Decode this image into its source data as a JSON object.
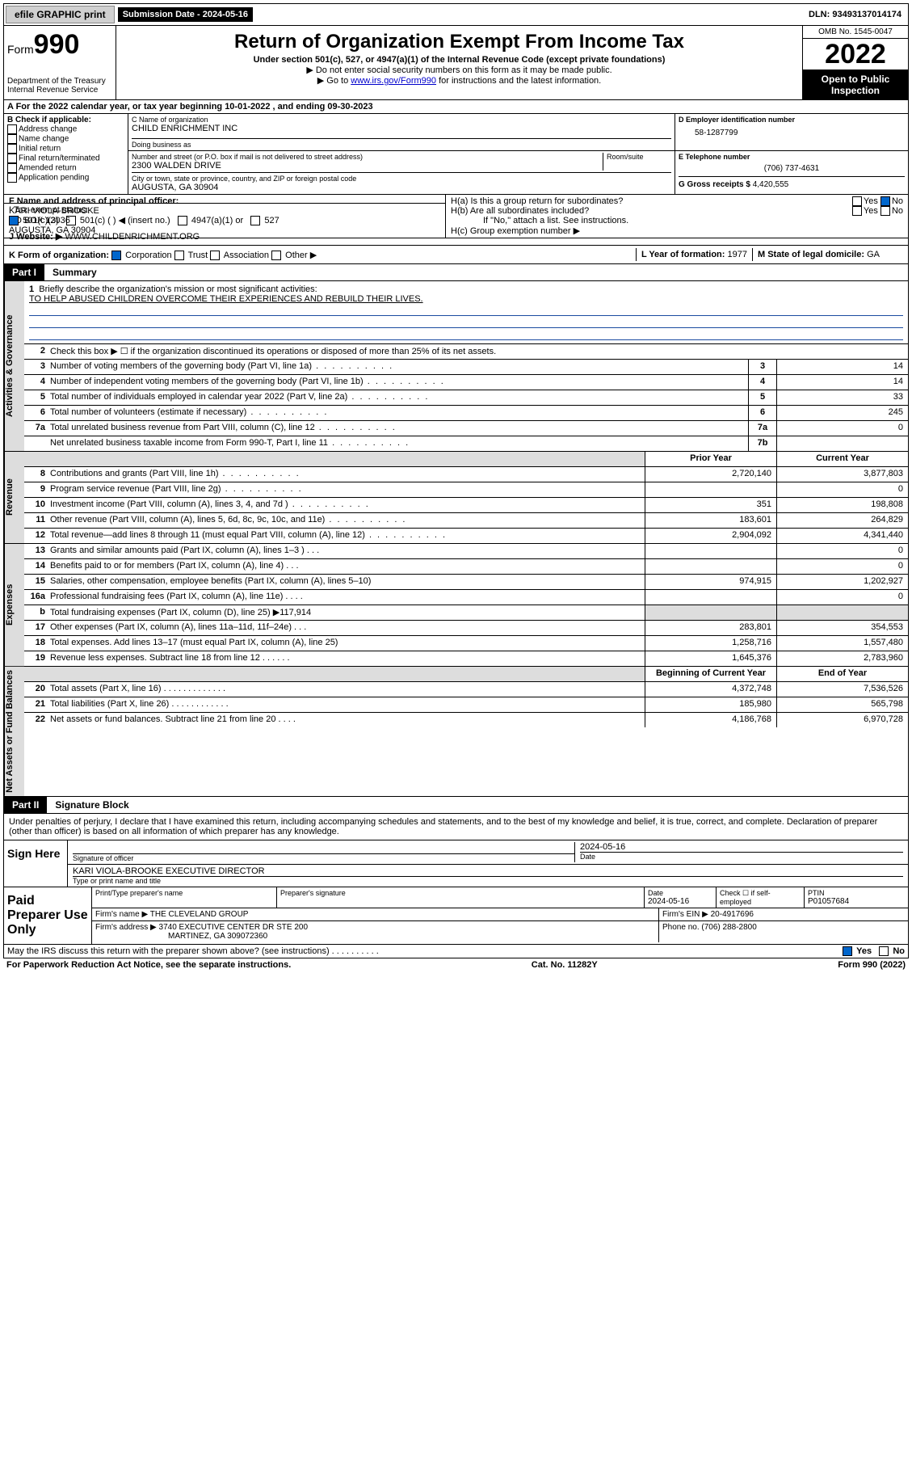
{
  "topbar": {
    "efile_label": "efile GRAPHIC print",
    "sub_date_label": "Submission Date - 2024-05-16",
    "dln": "DLN: 93493137014174"
  },
  "header": {
    "form_label": "Form",
    "form_number": "990",
    "dept": "Department of the Treasury",
    "irs": "Internal Revenue Service",
    "title": "Return of Organization Exempt From Income Tax",
    "subtitle": "Under section 501(c), 527, or 4947(a)(1) of the Internal Revenue Code (except private foundations)",
    "note1": "▶ Do not enter social security numbers on this form as it may be made public.",
    "note2_prefix": "▶ Go to ",
    "note2_link": "www.irs.gov/Form990",
    "note2_suffix": " for instructions and the latest information.",
    "omb": "OMB No. 1545-0047",
    "year": "2022",
    "open_public": "Open to Public Inspection"
  },
  "row_a": "A For the 2022 calendar year, or tax year beginning 10-01-2022   , and ending 09-30-2023",
  "col_b": {
    "label": "B Check if applicable:",
    "items": [
      "Address change",
      "Name change",
      "Initial return",
      "Final return/terminated",
      "Amended return",
      "Application pending"
    ]
  },
  "block_c": {
    "name_label": "C Name of organization",
    "name": "CHILD ENRICHMENT INC",
    "dba_label": "Doing business as",
    "dba": "",
    "street_label": "Number and street (or P.O. box if mail is not delivered to street address)",
    "room_label": "Room/suite",
    "street": "2300 WALDEN DRIVE",
    "city_label": "City or town, state or province, country, and ZIP or foreign postal code",
    "city": "AUGUSTA, GA  30904"
  },
  "block_d": {
    "label": "D Employer identification number",
    "value": "58-1287799"
  },
  "block_e": {
    "label": "E Telephone number",
    "value": "(706) 737-4631"
  },
  "block_g": {
    "label": "G Gross receipts $",
    "value": "4,420,555"
  },
  "block_f": {
    "label": "F Name and address of principal officer:",
    "name": "KARI VIOLA-BROOKE",
    "addr1": "PO BOX 12036",
    "addr2": "AUGUSTA, GA  30904"
  },
  "block_h": {
    "ha": "H(a)  Is this a group return for subordinates?",
    "hb": "H(b)  Are all subordinates included?",
    "hb_note": "If \"No,\" attach a list. See instructions.",
    "hc": "H(c)  Group exemption number ▶",
    "yes": "Yes",
    "no": "No"
  },
  "row_i": {
    "label": "I    Tax-exempt status:",
    "o1": "501(c)(3)",
    "o2": "501(c) (  ) ◀ (insert no.)",
    "o3": "4947(a)(1) or",
    "o4": "527"
  },
  "row_j": {
    "label": "J    Website: ▶",
    "value": "WWW.CHILDENRICHMENT.ORG"
  },
  "row_k": {
    "label": "K Form of organization:",
    "o1": "Corporation",
    "o2": "Trust",
    "o3": "Association",
    "o4": "Other ▶"
  },
  "row_l": {
    "label": "L Year of formation:",
    "value": "1977"
  },
  "row_m": {
    "label": "M State of legal domicile:",
    "value": "GA"
  },
  "part1": {
    "tag": "Part I",
    "title": "Summary"
  },
  "mission": {
    "num": "1",
    "label": "Briefly describe the organization's mission or most significant activities:",
    "text": "TO HELP ABUSED CHILDREN OVERCOME THEIR EXPERIENCES AND REBUILD THEIR LIVES."
  },
  "line2": {
    "num": "2",
    "text": "Check this box ▶ ☐ if the organization discontinued its operations or disposed of more than 25% of its net assets."
  },
  "gov_rows": [
    {
      "n": "3",
      "desc": "Number of voting members of the governing body (Part VI, line 1a)",
      "box": "3",
      "val": "14"
    },
    {
      "n": "4",
      "desc": "Number of independent voting members of the governing body (Part VI, line 1b)",
      "box": "4",
      "val": "14"
    },
    {
      "n": "5",
      "desc": "Total number of individuals employed in calendar year 2022 (Part V, line 2a)",
      "box": "5",
      "val": "33"
    },
    {
      "n": "6",
      "desc": "Total number of volunteers (estimate if necessary)",
      "box": "6",
      "val": "245"
    },
    {
      "n": "7a",
      "desc": "Total unrelated business revenue from Part VIII, column (C), line 12",
      "box": "7a",
      "val": "0"
    },
    {
      "n": "",
      "desc": "Net unrelated business taxable income from Form 990-T, Part I, line 11",
      "box": "7b",
      "val": ""
    }
  ],
  "rev_header": {
    "prior": "Prior Year",
    "current": "Current Year"
  },
  "rev_rows": [
    {
      "n": "8",
      "desc": "Contributions and grants (Part VIII, line 1h)",
      "prior": "2,720,140",
      "current": "3,877,803"
    },
    {
      "n": "9",
      "desc": "Program service revenue (Part VIII, line 2g)",
      "prior": "",
      "current": "0"
    },
    {
      "n": "10",
      "desc": "Investment income (Part VIII, column (A), lines 3, 4, and 7d )",
      "prior": "351",
      "current": "198,808"
    },
    {
      "n": "11",
      "desc": "Other revenue (Part VIII, column (A), lines 5, 6d, 8c, 9c, 10c, and 11e)",
      "prior": "183,601",
      "current": "264,829"
    },
    {
      "n": "12",
      "desc": "Total revenue—add lines 8 through 11 (must equal Part VIII, column (A), line 12)",
      "prior": "2,904,092",
      "current": "4,341,440"
    }
  ],
  "exp_rows": [
    {
      "n": "13",
      "desc": "Grants and similar amounts paid (Part IX, column (A), lines 1–3 )  .  .  .",
      "prior": "",
      "current": "0"
    },
    {
      "n": "14",
      "desc": "Benefits paid to or for members (Part IX, column (A), line 4)  .  .  .",
      "prior": "",
      "current": "0"
    },
    {
      "n": "15",
      "desc": "Salaries, other compensation, employee benefits (Part IX, column (A), lines 5–10)",
      "prior": "974,915",
      "current": "1,202,927"
    },
    {
      "n": "16a",
      "desc": "Professional fundraising fees (Part IX, column (A), line 11e)  .  .  .  .",
      "prior": "",
      "current": "0"
    },
    {
      "n": "b",
      "desc": "Total fundraising expenses (Part IX, column (D), line 25) ▶117,914",
      "prior": "SHADE",
      "current": "SHADE"
    },
    {
      "n": "17",
      "desc": "Other expenses (Part IX, column (A), lines 11a–11d, 11f–24e)  .  .  .",
      "prior": "283,801",
      "current": "354,553"
    },
    {
      "n": "18",
      "desc": "Total expenses. Add lines 13–17 (must equal Part IX, column (A), line 25)",
      "prior": "1,258,716",
      "current": "1,557,480"
    },
    {
      "n": "19",
      "desc": "Revenue less expenses. Subtract line 18 from line 12  .  .  .  .  .  .",
      "prior": "1,645,376",
      "current": "2,783,960"
    }
  ],
  "net_header": {
    "prior": "Beginning of Current Year",
    "current": "End of Year"
  },
  "net_rows": [
    {
      "n": "20",
      "desc": "Total assets (Part X, line 16)  .  .  .  .  .  .  .  .  .  .  .  .  .",
      "prior": "4,372,748",
      "current": "7,536,526"
    },
    {
      "n": "21",
      "desc": "Total liabilities (Part X, line 26)  .  .  .  .  .  .  .  .  .  .  .  .",
      "prior": "185,980",
      "current": "565,798"
    },
    {
      "n": "22",
      "desc": "Net assets or fund balances. Subtract line 21 from line 20  .  .  .  .",
      "prior": "4,186,768",
      "current": "6,970,728"
    }
  ],
  "part2": {
    "tag": "Part II",
    "title": "Signature Block"
  },
  "sig_decl": "Under penalties of perjury, I declare that I have examined this return, including accompanying schedules and statements, and to the best of my knowledge and belief, it is true, correct, and complete. Declaration of preparer (other than officer) is based on all information of which preparer has any knowledge.",
  "sign_here": {
    "label": "Sign Here",
    "sig_label": "Signature of officer",
    "date_label": "Date",
    "date": "2024-05-16",
    "name": "KARI VIOLA-BROOKE  EXECUTIVE DIRECTOR",
    "name_label": "Type or print name and title"
  },
  "paid": {
    "label": "Paid Preparer Use Only",
    "h1": "Print/Type preparer's name",
    "h2": "Preparer's signature",
    "h3": "Date",
    "h4": "Check ☐ if self-employed",
    "h5": "PTIN",
    "date": "2024-05-16",
    "ptin": "P01057684",
    "firm_name_label": "Firm's name    ▶",
    "firm_name": "THE CLEVELAND GROUP",
    "firm_ein_label": "Firm's EIN ▶",
    "firm_ein": "20-4917696",
    "firm_addr_label": "Firm's address ▶",
    "firm_addr1": "3740 EXECUTIVE CENTER DR STE 200",
    "firm_addr2": "MARTINEZ, GA  309072360",
    "phone_label": "Phone no.",
    "phone": "(706) 288-2800"
  },
  "footer": {
    "discuss": "May the IRS discuss this return with the preparer shown above? (see instructions)  .  .  .  .  .  .  .  .  .  .",
    "yes": "Yes",
    "no": "No",
    "paperwork": "For Paperwork Reduction Act Notice, see the separate instructions.",
    "cat": "Cat. No. 11282Y",
    "form": "Form 990 (2022)"
  },
  "vtabs": {
    "gov": "Activities & Governance",
    "rev": "Revenue",
    "exp": "Expenses",
    "net": "Net Assets or Fund Balances"
  }
}
